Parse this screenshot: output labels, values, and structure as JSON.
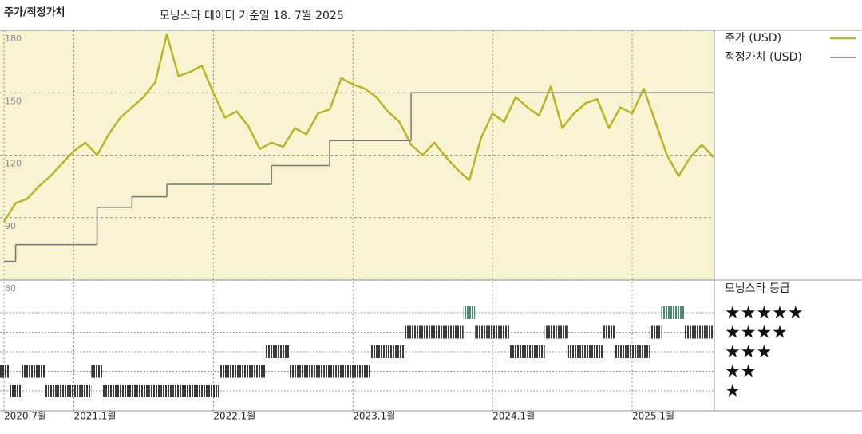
{
  "chart_data": {
    "type": "line",
    "title": "주가/적정가치",
    "subtitle": "모닝스타 데이터 기준일 18. 7월 2025",
    "x": [
      "2020-07",
      "2020-08",
      "2020-09",
      "2020-10",
      "2020-11",
      "2020-12",
      "2021-01",
      "2021-02",
      "2021-03",
      "2021-04",
      "2021-05",
      "2021-06",
      "2021-07",
      "2021-08",
      "2021-09",
      "2021-10",
      "2021-11",
      "2021-12",
      "2022-01",
      "2022-02",
      "2022-03",
      "2022-04",
      "2022-05",
      "2022-06",
      "2022-07",
      "2022-08",
      "2022-09",
      "2022-10",
      "2022-11",
      "2022-12",
      "2023-01",
      "2023-02",
      "2023-03",
      "2023-04",
      "2023-05",
      "2023-06",
      "2023-07",
      "2023-08",
      "2023-09",
      "2023-10",
      "2023-11",
      "2023-12",
      "2024-01",
      "2024-02",
      "2024-03",
      "2024-04",
      "2024-05",
      "2024-06",
      "2024-07",
      "2024-08",
      "2024-09",
      "2024-10",
      "2024-11",
      "2024-12",
      "2025-01",
      "2025-02",
      "2025-03",
      "2025-04",
      "2025-05",
      "2025-06",
      "2025-07",
      "2025-08"
    ],
    "xlim": [
      "2020-07",
      "2025-08"
    ],
    "xticks": [
      {
        "value": "2020-07",
        "label": "2020.7월"
      },
      {
        "value": "2021-01",
        "label": "2021.1월"
      },
      {
        "value": "2022-01",
        "label": "2022.1월"
      },
      {
        "value": "2023-01",
        "label": "2023.1월"
      },
      {
        "value": "2024-01",
        "label": "2024.1월"
      },
      {
        "value": "2025-01",
        "label": "2025.1월"
      }
    ],
    "ylim": [
      60,
      180
    ],
    "yticks": [
      60,
      90,
      120,
      150,
      180
    ],
    "grid": true,
    "series": [
      {
        "name": "주가 (USD)",
        "color": "#b7b52a",
        "values": [
          88,
          97,
          99,
          105,
          110,
          116,
          122,
          126,
          120,
          130,
          138,
          143,
          148,
          155,
          178,
          158,
          160,
          163,
          150,
          138,
          141,
          134,
          123,
          126,
          124,
          133,
          130,
          140,
          142,
          157,
          154,
          152,
          148,
          141,
          136,
          125,
          120,
          126,
          119,
          113,
          108,
          128,
          140,
          136,
          148,
          143,
          139,
          153,
          133,
          140,
          145,
          147,
          133,
          143,
          140,
          152,
          136,
          120,
          110,
          119,
          125,
          119
        ]
      },
      {
        "name": "적정가치 (USD)",
        "color": "#777777",
        "step": true,
        "x": [
          "2020-07",
          "2020-08",
          "2021-03",
          "2021-06",
          "2021-09",
          "2022-06",
          "2022-11",
          "2023-06",
          "2025-08"
        ],
        "values": [
          69,
          77,
          95,
          100,
          106,
          115,
          127,
          150,
          150
        ]
      }
    ],
    "rating": {
      "title": "모닝스타 등급",
      "levels": [
        "★",
        "★★",
        "★★★",
        "★★★★",
        "★★★★★"
      ],
      "colors": [
        "#3a3a3a",
        "#3a3a3a",
        "#3a3a3a",
        "#3a3a3a",
        "#4a8a70"
      ],
      "values": [
        2,
        1,
        2,
        2,
        1,
        1,
        1,
        1,
        2,
        1,
        1,
        1,
        1,
        1,
        1,
        1,
        1,
        1,
        1,
        2,
        2,
        2,
        2,
        3,
        3,
        2,
        2,
        2,
        2,
        2,
        2,
        2,
        3,
        3,
        3,
        4,
        4,
        4,
        4,
        4,
        5,
        4,
        4,
        4,
        3,
        3,
        3,
        4,
        4,
        3,
        3,
        3,
        4,
        3,
        3,
        3,
        4,
        5,
        5,
        4,
        4,
        4
      ]
    }
  }
}
